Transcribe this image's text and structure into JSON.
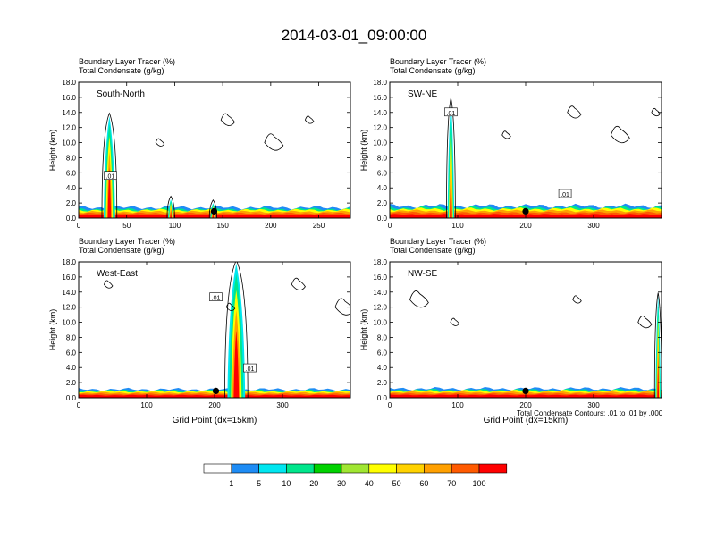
{
  "title": "2014-03-01_09:00:00",
  "footer_note": "Total Condensate Contours: .01 to .01 by .000",
  "colorbar": {
    "colors": [
      "#ffffff",
      "#1e8cf5",
      "#00e6f0",
      "#00e68c",
      "#00d200",
      "#a0e632",
      "#ffff00",
      "#ffd200",
      "#ffa000",
      "#ff5a00",
      "#ff0000"
    ],
    "labels": [
      "1",
      "5",
      "10",
      "20",
      "30",
      "40",
      "50",
      "60",
      "70",
      "100"
    ]
  },
  "chart_data": [
    {
      "type": "heatmap",
      "panel": "south-north",
      "header_line1": "Boundary Layer Tracer   (%)",
      "header_line2": "Total Condensate   (g/kg)",
      "label": "South-North",
      "ylabel": "Height (km)",
      "xlabel": "",
      "ylim": [
        0,
        18
      ],
      "xlim": [
        0,
        283
      ],
      "yticks": [
        "0.0",
        "2.0",
        "4.0",
        "6.0",
        "8.0",
        "10.0",
        "12.0",
        "14.0",
        "16.0",
        "18.0"
      ],
      "xticks": [
        0,
        50,
        100,
        150,
        200,
        250
      ],
      "contour_label": ".01",
      "contour_label_pos": [
        33,
        5.6
      ],
      "marker_x": 141,
      "plumes": [
        {
          "x": 32,
          "top": 13.5,
          "width": 12
        },
        {
          "x": 96,
          "top": 2.5,
          "width": 6
        },
        {
          "x": 140,
          "top": 2.0,
          "width": 6
        }
      ],
      "pbl_top": 1.4
    },
    {
      "type": "heatmap",
      "panel": "sw-ne",
      "header_line1": "Boundary Layer Tracer   (%)",
      "header_line2": "Total Condensate   (g/kg)",
      "label": "SW-NE",
      "ylabel": "Height (km)",
      "xlabel": "",
      "ylim": [
        0,
        18
      ],
      "xlim": [
        0,
        400
      ],
      "yticks": [
        "0.0",
        "2.0",
        "4.0",
        "6.0",
        "8.0",
        "10.0",
        "12.0",
        "14.0",
        "16.0",
        "18.0"
      ],
      "xticks": [
        0,
        100,
        200,
        300
      ],
      "contour_label": ".01",
      "contour_label_pos": [
        90,
        14.0
      ],
      "contour_label2": ".01",
      "contour_label2_pos": [
        258,
        3.2
      ],
      "marker_x": 200,
      "plumes": [
        {
          "x": 90,
          "top": 15.5,
          "width": 10
        }
      ],
      "pbl_top": 1.6
    },
    {
      "type": "heatmap",
      "panel": "west-east",
      "header_line1": "Boundary Layer Tracer   (%)",
      "header_line2": "Total Condensate   (g/kg)",
      "label": "West-East",
      "ylabel": "Height (km)",
      "xlabel": "Grid Point (dx=15km)",
      "ylim": [
        0,
        18
      ],
      "xlim": [
        0,
        400
      ],
      "yticks": [
        "0.0",
        "2.0",
        "4.0",
        "6.0",
        "8.0",
        "10.0",
        "12.0",
        "14.0",
        "16.0",
        "18.0"
      ],
      "xticks": [
        0,
        100,
        200,
        300
      ],
      "contour_label": ".01",
      "contour_label_pos": [
        202,
        13.3
      ],
      "contour_label2": ".01",
      "contour_label2_pos": [
        252,
        3.9
      ],
      "marker_x": 202,
      "plumes": [
        {
          "x": 232,
          "top": 17.8,
          "width": 26
        }
      ],
      "pbl_top": 1.1
    },
    {
      "type": "heatmap",
      "panel": "nw-se",
      "header_line1": "Boundary Layer Tracer   (%)",
      "header_line2": "Total Condensate   (g/kg)",
      "label": "NW-SE",
      "ylabel": "Height (km)",
      "xlabel": "Grid Point (dx=15km)",
      "ylim": [
        0,
        18
      ],
      "xlim": [
        0,
        400
      ],
      "yticks": [
        "0.0",
        "2.0",
        "4.0",
        "6.0",
        "8.0",
        "10.0",
        "12.0",
        "14.0",
        "16.0",
        "18.0"
      ],
      "xticks": [
        0,
        100,
        200,
        300
      ],
      "contour_label": "",
      "marker_x": 200,
      "plumes": [
        {
          "x": 395,
          "top": 13.5,
          "width": 8
        }
      ],
      "pbl_top": 1.2
    }
  ]
}
